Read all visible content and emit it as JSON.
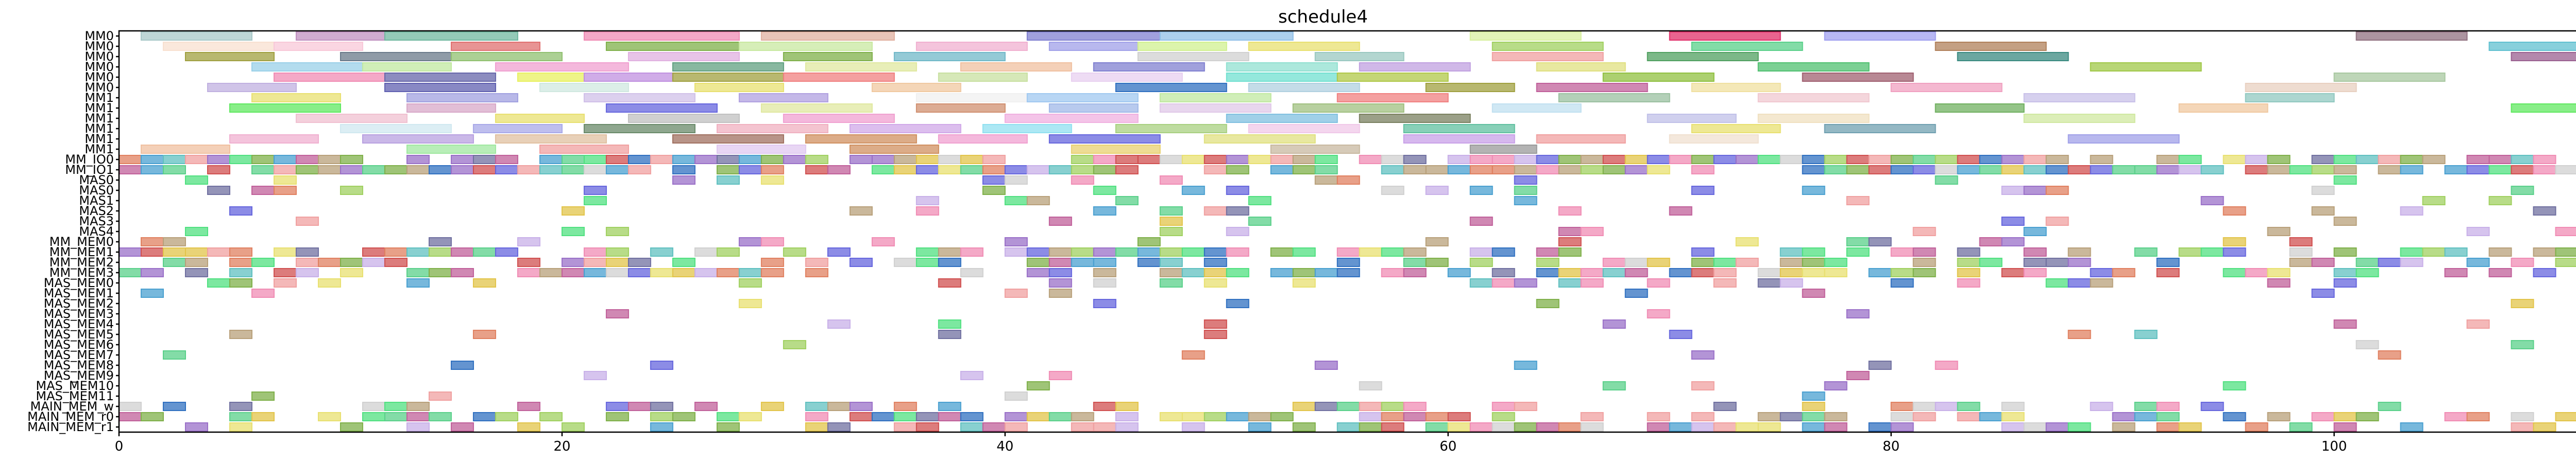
{
  "chart_data": {
    "type": "gantt",
    "title": "schedule4",
    "xlabel": "",
    "ylabel": "",
    "xlim": [
      0,
      113.5
    ],
    "x_ticks": [
      0,
      20,
      40,
      60,
      80,
      100
    ],
    "grid": false,
    "legend": "none",
    "rows": [
      "MM0",
      "MM0",
      "MM0",
      "MM0",
      "MM0",
      "MM0",
      "MM1",
      "MM1",
      "MM1",
      "MM1",
      "MM1",
      "MM1",
      "MM_IO0",
      "MM_IO1",
      "MAS0",
      "MAS0",
      "MAS1",
      "MAS2",
      "MAS3",
      "MAS4",
      "MM_MEM0",
      "MM_MEM1",
      "MM_MEM2",
      "MM_MEM3",
      "MAS_MEM0",
      "MAS_MEM1",
      "MAS_MEM2",
      "MAS_MEM3",
      "MAS_MEM4",
      "MAS_MEM5",
      "MAS_MEM6",
      "MAS_MEM7",
      "MAS_MEM8",
      "MAS_MEM9",
      "MAS_MEM10",
      "MAS_MEM11",
      "MAIN_MEM_w",
      "MAIN_MEM_r0",
      "MAIN_MEM_r1"
    ],
    "palette": [
      "#f08cb4",
      "#7fb04a",
      "#6666dd",
      "#c0609a",
      "#4aa0d0",
      "#e2c44a",
      "#5ad08a",
      "#d05050",
      "#9a70c8",
      "#b8a07a",
      "#60c0c0",
      "#e08060",
      "#a0d060",
      "#7070a0",
      "#d0d0d0",
      "#50e080",
      "#c8b0e8",
      "#f0a0a0",
      "#3070c0",
      "#e8e070"
    ],
    "tasks": [
      {
        "row": 0,
        "start": 1.0,
        "end": 6.0,
        "color": "#a8c8c8"
      },
      {
        "row": 0,
        "start": 8.0,
        "end": 12.0,
        "color": "#c090c0"
      },
      {
        "row": 0,
        "start": 12.0,
        "end": 18.0,
        "color": "#70b8a0"
      },
      {
        "row": 0,
        "start": 21.0,
        "end": 28.0,
        "color": "#f08cb4"
      },
      {
        "row": 0,
        "start": 29.0,
        "end": 35.0,
        "color": "#e0b0a0"
      },
      {
        "row": 0,
        "start": 41.0,
        "end": 47.0,
        "color": "#8080d0"
      },
      {
        "row": 0,
        "start": 47.0,
        "end": 53.0,
        "color": "#90c0e8"
      },
      {
        "row": 0,
        "start": 61.0,
        "end": 66.0,
        "color": "#d8f0a0"
      },
      {
        "row": 0,
        "start": 70.0,
        "end": 75.0,
        "color": "#e0306a"
      },
      {
        "row": 0,
        "start": 77.0,
        "end": 82.0,
        "color": "#a0a0f0"
      },
      {
        "row": 0,
        "start": 101.0,
        "end": 106.0,
        "color": "#907080"
      },
      {
        "row": 1,
        "start": 2.0,
        "end": 7.0,
        "color": "#f8e0d0"
      },
      {
        "row": 1,
        "start": 7.0,
        "end": 11.0,
        "color": "#f8c8d8"
      },
      {
        "row": 1,
        "start": 15.0,
        "end": 19.0,
        "color": "#e07070"
      },
      {
        "row": 1,
        "start": 22.0,
        "end": 28.0,
        "color": "#7fb04a"
      },
      {
        "row": 1,
        "start": 28.0,
        "end": 34.0,
        "color": "#c8e8a0"
      },
      {
        "row": 1,
        "start": 36.0,
        "end": 41.0,
        "color": "#f0b0d0"
      },
      {
        "row": 1,
        "start": 42.0,
        "end": 46.0,
        "color": "#a0a0e8"
      },
      {
        "row": 1,
        "start": 46.0,
        "end": 50.0,
        "color": "#d0f090"
      },
      {
        "row": 1,
        "start": 51.0,
        "end": 56.0,
        "color": "#e8e070"
      },
      {
        "row": 1,
        "start": 62.0,
        "end": 67.0,
        "color": "#a0d060"
      },
      {
        "row": 1,
        "start": 71.0,
        "end": 76.0,
        "color": "#5ad08a"
      },
      {
        "row": 1,
        "start": 82.0,
        "end": 87.0,
        "color": "#b0805a"
      },
      {
        "row": 1,
        "start": 107.0,
        "end": 111.0,
        "color": "#60c0d0"
      },
      {
        "row": 2,
        "start": 3.0,
        "end": 7.0,
        "color": "#a0a040"
      },
      {
        "row": 2,
        "start": 10.0,
        "end": 15.0,
        "color": "#6a7a8a"
      },
      {
        "row": 2,
        "start": 15.0,
        "end": 20.0,
        "color": "#90c070"
      },
      {
        "row": 2,
        "start": 23.0,
        "end": 28.0,
        "color": "#e0b0e0"
      },
      {
        "row": 2,
        "start": 30.0,
        "end": 34.0,
        "color": "#7fb04a"
      },
      {
        "row": 2,
        "start": 35.0,
        "end": 40.0,
        "color": "#70b8c8"
      },
      {
        "row": 2,
        "start": 46.0,
        "end": 51.0,
        "color": "#d0d0d0"
      },
      {
        "row": 2,
        "start": 54.0,
        "end": 58.0,
        "color": "#9ac8c0"
      },
      {
        "row": 2,
        "start": 62.0,
        "end": 67.0,
        "color": "#f0a0a0"
      },
      {
        "row": 2,
        "start": 69.0,
        "end": 74.0,
        "color": "#50a060"
      },
      {
        "row": 2,
        "start": 83.0,
        "end": 88.0,
        "color": "#3a8a80"
      },
      {
        "row": 2,
        "start": 108.0,
        "end": 113.0,
        "color": "#9a6090"
      },
      {
        "row": 3,
        "start": 6.0,
        "end": 11.0,
        "color": "#9ad0e8"
      },
      {
        "row": 3,
        "start": 11.0,
        "end": 15.0,
        "color": "#c0e8a0"
      },
      {
        "row": 3,
        "start": 17.0,
        "end": 23.0,
        "color": "#f0a0d0"
      },
      {
        "row": 3,
        "start": 25.0,
        "end": 30.0,
        "color": "#60a080"
      },
      {
        "row": 3,
        "start": 31.0,
        "end": 36.0,
        "color": "#e0e8a0"
      },
      {
        "row": 3,
        "start": 38.0,
        "end": 43.0,
        "color": "#f0c0a0"
      },
      {
        "row": 3,
        "start": 44.0,
        "end": 49.0,
        "color": "#8080d0"
      },
      {
        "row": 3,
        "start": 50.0,
        "end": 55.0,
        "color": "#90e0d0"
      },
      {
        "row": 3,
        "start": 56.0,
        "end": 61.0,
        "color": "#c0a0e0"
      },
      {
        "row": 3,
        "start": 64.0,
        "end": 68.0,
        "color": "#e0e080"
      },
      {
        "row": 3,
        "start": 74.0,
        "end": 79.0,
        "color": "#50c070"
      },
      {
        "row": 3,
        "start": 89.0,
        "end": 94.0,
        "color": "#a0c848"
      },
      {
        "row": 4,
        "start": 7.0,
        "end": 12.0,
        "color": "#f08cb4"
      },
      {
        "row": 4,
        "start": 12.0,
        "end": 17.0,
        "color": "#6666aa"
      },
      {
        "row": 4,
        "start": 18.0,
        "end": 21.0,
        "color": "#e8f060"
      },
      {
        "row": 4,
        "start": 21.0,
        "end": 25.0,
        "color": "#c090e0"
      },
      {
        "row": 4,
        "start": 25.0,
        "end": 30.0,
        "color": "#a0a040"
      },
      {
        "row": 4,
        "start": 30.0,
        "end": 35.0,
        "color": "#f08080"
      },
      {
        "row": 4,
        "start": 37.0,
        "end": 41.0,
        "color": "#c8e0a0"
      },
      {
        "row": 4,
        "start": 43.0,
        "end": 48.0,
        "color": "#e8d0f0"
      },
      {
        "row": 4,
        "start": 50.0,
        "end": 55.0,
        "color": "#70e0d0"
      },
      {
        "row": 4,
        "start": 55.0,
        "end": 60.0,
        "color": "#b0c848"
      },
      {
        "row": 4,
        "start": 67.0,
        "end": 72.0,
        "color": "#90c040"
      },
      {
        "row": 4,
        "start": 76.0,
        "end": 81.0,
        "color": "#a06070"
      },
      {
        "row": 4,
        "start": 100.0,
        "end": 105.0,
        "color": "#a8c8a0"
      },
      {
        "row": 5,
        "start": 4.0,
        "end": 8.0,
        "color": "#c0b0e0"
      },
      {
        "row": 5,
        "start": 12.0,
        "end": 17.0,
        "color": "#6060b0"
      },
      {
        "row": 5,
        "start": 19.0,
        "end": 23.0,
        "color": "#d0e8e0"
      },
      {
        "row": 5,
        "start": 26.0,
        "end": 30.0,
        "color": "#e8e070"
      },
      {
        "row": 5,
        "start": 34.0,
        "end": 38.0,
        "color": "#f0c8a0"
      },
      {
        "row": 5,
        "start": 45.0,
        "end": 50.0,
        "color": "#3070c0"
      },
      {
        "row": 5,
        "start": 51.0,
        "end": 56.0,
        "color": "#b0d0e0"
      },
      {
        "row": 5,
        "start": 59.0,
        "end": 63.0,
        "color": "#a0a040"
      },
      {
        "row": 5,
        "start": 64.0,
        "end": 69.0,
        "color": "#c0609a"
      },
      {
        "row": 5,
        "start": 71.0,
        "end": 75.0,
        "color": "#f0e0a0"
      },
      {
        "row": 5,
        "start": 80.0,
        "end": 85.0,
        "color": "#f0a0c0"
      },
      {
        "row": 5,
        "start": 96.0,
        "end": 101.0,
        "color": "#e8d0c0"
      },
      {
        "row": 6,
        "start": 6.0,
        "end": 10.0,
        "color": "#e8e070"
      },
      {
        "row": 6,
        "start": 13.0,
        "end": 18.0,
        "color": "#a0a0e0"
      },
      {
        "row": 6,
        "start": 21.0,
        "end": 26.0,
        "color": "#d0c0e8"
      },
      {
        "row": 6,
        "start": 28.0,
        "end": 32.0,
        "color": "#b0a0e0"
      },
      {
        "row": 6,
        "start": 36.0,
        "end": 41.0,
        "color": "#f0f0f0"
      },
      {
        "row": 6,
        "start": 41.0,
        "end": 46.0,
        "color": "#a0c8f0"
      },
      {
        "row": 6,
        "start": 47.0,
        "end": 52.0,
        "color": "#c0e8a0"
      },
      {
        "row": 6,
        "start": 55.0,
        "end": 60.0,
        "color": "#f08080"
      },
      {
        "row": 6,
        "start": 65.0,
        "end": 70.0,
        "color": "#9ac0a0"
      },
      {
        "row": 6,
        "start": 74.0,
        "end": 79.0,
        "color": "#f0c8d0"
      },
      {
        "row": 6,
        "start": 86.0,
        "end": 91.0,
        "color": "#c8c0e8"
      },
      {
        "row": 6,
        "start": 96.0,
        "end": 100.0,
        "color": "#90c8c0"
      },
      {
        "row": 7,
        "start": 5.0,
        "end": 10.0,
        "color": "#60e860"
      },
      {
        "row": 7,
        "start": 13.0,
        "end": 17.0,
        "color": "#d8a8c8"
      },
      {
        "row": 7,
        "start": 22.0,
        "end": 27.0,
        "color": "#6666dd"
      },
      {
        "row": 7,
        "start": 29.0,
        "end": 34.0,
        "color": "#e0e8a0"
      },
      {
        "row": 7,
        "start": 36.0,
        "end": 40.0,
        "color": "#d09070"
      },
      {
        "row": 7,
        "start": 42.0,
        "end": 46.0,
        "color": "#a0b8e8"
      },
      {
        "row": 7,
        "start": 47.0,
        "end": 52.0,
        "color": "#e0c8e8"
      },
      {
        "row": 7,
        "start": 53.0,
        "end": 58.0,
        "color": "#a0c080"
      },
      {
        "row": 7,
        "start": 62.0,
        "end": 66.0,
        "color": "#c0e0f0"
      },
      {
        "row": 7,
        "start": 82.0,
        "end": 86.0,
        "color": "#70b060"
      },
      {
        "row": 7,
        "start": 93.0,
        "end": 97.0,
        "color": "#f0c8a0"
      },
      {
        "row": 7,
        "start": 108.0,
        "end": 113.0,
        "color": "#60e860"
      },
      {
        "row": 8,
        "start": 8.0,
        "end": 13.0,
        "color": "#f0c0d0"
      },
      {
        "row": 8,
        "start": 17.0,
        "end": 21.0,
        "color": "#e8e070"
      },
      {
        "row": 8,
        "start": 23.0,
        "end": 28.0,
        "color": "#c0c0c0"
      },
      {
        "row": 8,
        "start": 30.0,
        "end": 35.0,
        "color": "#f0a0d0"
      },
      {
        "row": 8,
        "start": 40.0,
        "end": 46.0,
        "color": "#f0b0e0"
      },
      {
        "row": 8,
        "start": 50.0,
        "end": 55.0,
        "color": "#80c0e0"
      },
      {
        "row": 8,
        "start": 56.0,
        "end": 61.0,
        "color": "#7a8060"
      },
      {
        "row": 8,
        "start": 69.0,
        "end": 73.0,
        "color": "#c0c0e8"
      },
      {
        "row": 8,
        "start": 74.0,
        "end": 79.0,
        "color": "#f0e0c0"
      },
      {
        "row": 8,
        "start": 86.0,
        "end": 91.0,
        "color": "#d0e8a0"
      },
      {
        "row": 9,
        "start": 10.0,
        "end": 15.0,
        "color": "#d0e8f0"
      },
      {
        "row": 9,
        "start": 16.0,
        "end": 20.0,
        "color": "#a8a8e8"
      },
      {
        "row": 9,
        "start": 21.0,
        "end": 26.0,
        "color": "#6a8a6a"
      },
      {
        "row": 9,
        "start": 27.0,
        "end": 32.0,
        "color": "#f0b0c0"
      },
      {
        "row": 9,
        "start": 33.0,
        "end": 38.0,
        "color": "#d0a8e8"
      },
      {
        "row": 9,
        "start": 39.0,
        "end": 43.0,
        "color": "#90e0f0"
      },
      {
        "row": 9,
        "start": 45.0,
        "end": 50.0,
        "color": "#a8d080"
      },
      {
        "row": 9,
        "start": 51.0,
        "end": 56.0,
        "color": "#f0c8e8"
      },
      {
        "row": 9,
        "start": 58.0,
        "end": 63.0,
        "color": "#60c0a0"
      },
      {
        "row": 9,
        "start": 71.0,
        "end": 75.0,
        "color": "#e8e070"
      },
      {
        "row": 9,
        "start": 77.0,
        "end": 82.0,
        "color": "#70a0b0"
      },
      {
        "row": 10,
        "start": 5.0,
        "end": 9.0,
        "color": "#f0b0d0"
      },
      {
        "row": 10,
        "start": 11.0,
        "end": 16.0,
        "color": "#b8a0e0"
      },
      {
        "row": 10,
        "start": 17.0,
        "end": 22.0,
        "color": "#e0c0a0"
      },
      {
        "row": 10,
        "start": 25.0,
        "end": 30.0,
        "color": "#a07060"
      },
      {
        "row": 10,
        "start": 31.0,
        "end": 36.0,
        "color": "#d09060"
      },
      {
        "row": 10,
        "start": 37.0,
        "end": 41.0,
        "color": "#f0a0d0"
      },
      {
        "row": 10,
        "start": 42.0,
        "end": 47.0,
        "color": "#6666dd"
      },
      {
        "row": 10,
        "start": 49.0,
        "end": 54.0,
        "color": "#e0e080"
      },
      {
        "row": 10,
        "start": 58.0,
        "end": 63.0,
        "color": "#c8a0e8"
      },
      {
        "row": 10,
        "start": 64.0,
        "end": 68.0,
        "color": "#f0a0a0"
      },
      {
        "row": 10,
        "start": 70.0,
        "end": 74.0,
        "color": "#f0e0d0"
      },
      {
        "row": 10,
        "start": 88.0,
        "end": 93.0,
        "color": "#a0a0e8"
      },
      {
        "row": 11,
        "start": 1.0,
        "end": 5.0,
        "color": "#f0c0a0"
      },
      {
        "row": 11,
        "start": 13.0,
        "end": 17.0,
        "color": "#a0e8a0"
      },
      {
        "row": 11,
        "start": 19.0,
        "end": 23.0,
        "color": "#f0a0a0"
      },
      {
        "row": 11,
        "start": 27.0,
        "end": 31.0,
        "color": "#e0c8f0"
      },
      {
        "row": 11,
        "start": 33.0,
        "end": 37.0,
        "color": "#d09060"
      },
      {
        "row": 11,
        "start": 43.0,
        "end": 47.0,
        "color": "#e8d070"
      },
      {
        "row": 11,
        "start": 52.0,
        "end": 56.0,
        "color": "#c8b8a0"
      },
      {
        "row": 11,
        "start": 61.0,
        "end": 64.0,
        "color": "#9a9a9a"
      }
    ]
  }
}
